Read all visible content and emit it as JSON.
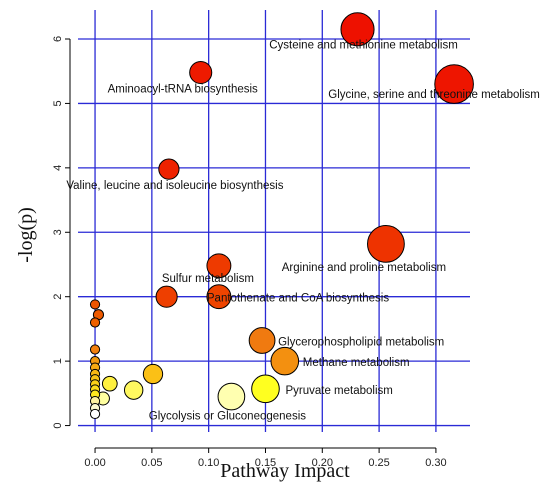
{
  "chart_data": {
    "type": "scatter",
    "xlabel": "Pathway Impact",
    "ylabel": "-log(p)",
    "xlim": [
      -0.015,
      0.33
    ],
    "ylim": [
      -0.1,
      6.45
    ],
    "x_ticks": [
      0.0,
      0.05,
      0.1,
      0.15,
      0.2,
      0.25,
      0.3
    ],
    "x_tick_labels": [
      "0.00",
      "0.05",
      "0.10",
      "0.15",
      "0.20",
      "0.25",
      "0.30"
    ],
    "y_ticks": [
      0,
      1,
      2,
      3,
      4,
      5,
      6
    ],
    "y_tick_labels": [
      "0",
      "1",
      "2",
      "3",
      "4",
      "5",
      "6"
    ],
    "grid": true,
    "grid_color": "#2a2ad6",
    "points": [
      {
        "x": 0.231,
        "y": 6.15,
        "size": 3.6,
        "color": "#ee1100",
        "label": "Cysteine and methionine metabolism"
      },
      {
        "x": 0.316,
        "y": 5.3,
        "size": 4.2,
        "color": "#ee1500",
        "label": "Glycine, serine and threonine metabolism"
      },
      {
        "x": 0.093,
        "y": 5.48,
        "size": 2.4,
        "color": "#ee1a00",
        "label": "Aminoacyl-tRNA biosynthesis"
      },
      {
        "x": 0.065,
        "y": 3.98,
        "size": 2.2,
        "color": "#ee2200",
        "label": "Valine, leucine and isoleucine biosynthesis"
      },
      {
        "x": 0.256,
        "y": 2.82,
        "size": 4.0,
        "color": "#ee3300",
        "label": "Arginine and proline metabolism"
      },
      {
        "x": 0.109,
        "y": 2.48,
        "size": 2.6,
        "color": "#ee3a00",
        "label": "Sulfur metabolism"
      },
      {
        "x": 0.063,
        "y": 2.0,
        "size": 2.3,
        "color": "#ee3f00",
        "label": ""
      },
      {
        "x": 0.109,
        "y": 2.0,
        "size": 2.6,
        "color": "#ee4400",
        "label": "Pantothenate and CoA biosynthesis"
      },
      {
        "x": 0.147,
        "y": 1.32,
        "size": 2.8,
        "color": "#f07a10",
        "label": "Glycerophospholipid metabolism"
      },
      {
        "x": 0.167,
        "y": 1.0,
        "size": 3.0,
        "color": "#f39010",
        "label": "Methane metabolism"
      },
      {
        "x": 0.15,
        "y": 0.57,
        "size": 3.0,
        "color": "#ffff20",
        "label": "Pyruvate  metabolism"
      },
      {
        "x": 0.12,
        "y": 0.45,
        "size": 2.9,
        "color": "#ffffb0",
        "label": "Glycolysis or Gluconeogenesis"
      },
      {
        "x": 0.051,
        "y": 0.8,
        "size": 2.1,
        "color": "#fbc016",
        "label": ""
      },
      {
        "x": 0.034,
        "y": 0.55,
        "size": 2.0,
        "color": "#fff860",
        "label": ""
      },
      {
        "x": 0.013,
        "y": 0.65,
        "size": 1.6,
        "color": "#fff040",
        "label": ""
      },
      {
        "x": 0.007,
        "y": 0.42,
        "size": 1.4,
        "color": "#ffffa0",
        "label": ""
      },
      {
        "x": 0.0,
        "y": 1.88,
        "size": 1.0,
        "color": "#ee5500",
        "label": ""
      },
      {
        "x": 0.003,
        "y": 1.72,
        "size": 1.1,
        "color": "#ee5a00",
        "label": ""
      },
      {
        "x": 0.0,
        "y": 1.6,
        "size": 1.0,
        "color": "#ef6000",
        "label": ""
      },
      {
        "x": 0.0,
        "y": 1.18,
        "size": 1.0,
        "color": "#f28010",
        "label": ""
      },
      {
        "x": 0.0,
        "y": 1.0,
        "size": 1.0,
        "color": "#f39a10",
        "label": ""
      },
      {
        "x": 0.0,
        "y": 0.9,
        "size": 1.0,
        "color": "#f6aa12",
        "label": ""
      },
      {
        "x": 0.0,
        "y": 0.8,
        "size": 1.0,
        "color": "#f8b814",
        "label": ""
      },
      {
        "x": 0.0,
        "y": 0.72,
        "size": 1.0,
        "color": "#fac416",
        "label": ""
      },
      {
        "x": 0.0,
        "y": 0.64,
        "size": 1.0,
        "color": "#fbd018",
        "label": ""
      },
      {
        "x": 0.0,
        "y": 0.56,
        "size": 1.0,
        "color": "#fddc1c",
        "label": ""
      },
      {
        "x": 0.0,
        "y": 0.48,
        "size": 1.0,
        "color": "#fee820",
        "label": ""
      },
      {
        "x": 0.0,
        "y": 0.38,
        "size": 1.0,
        "color": "#fff2a0",
        "label": ""
      },
      {
        "x": 0.0,
        "y": 0.27,
        "size": 1.0,
        "color": "#fffbd0",
        "label": ""
      },
      {
        "x": 0.0,
        "y": 0.18,
        "size": 1.0,
        "color": "#ffffff",
        "label": ""
      }
    ]
  }
}
